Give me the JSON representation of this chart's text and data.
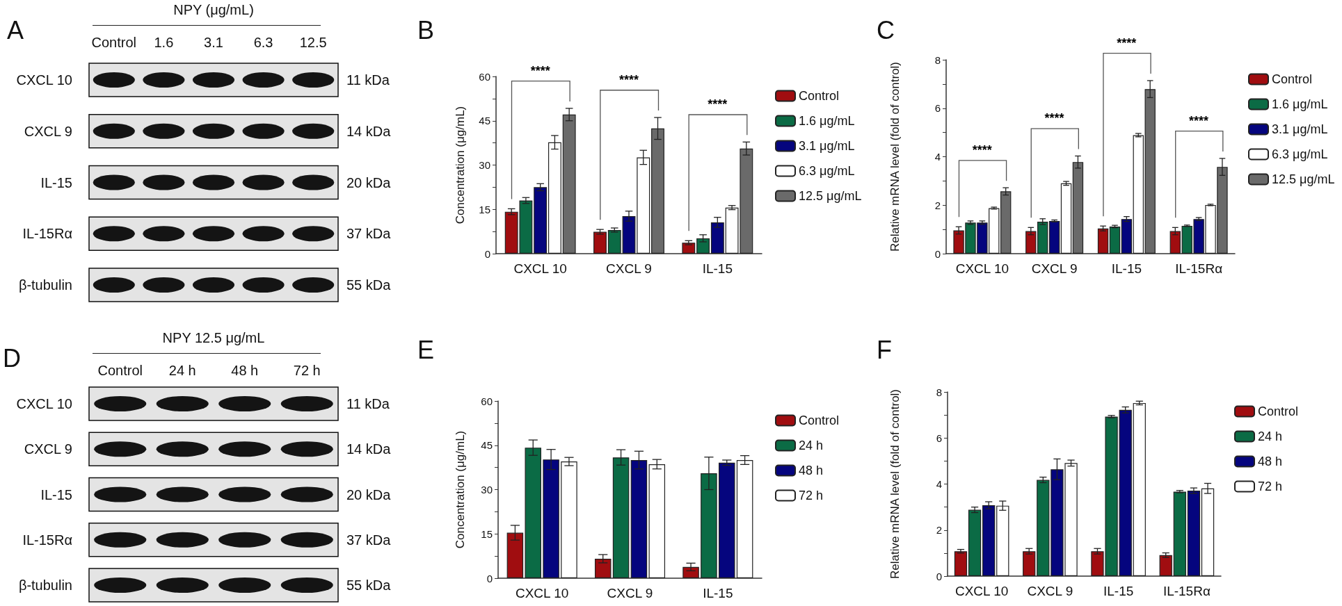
{
  "chart_data": [
    {
      "type": "other",
      "title": "NPY (μg/mL)",
      "categories": [
        "Control",
        "1.6",
        "3.1",
        "6.3",
        "12.5"
      ],
      "y_categories": [
        "CXCL 10",
        "CXCL 9",
        "IL-15",
        "IL-15Rα",
        "β-tubulin"
      ],
      "y2_categories": [
        "11 kDa",
        "14 kDa",
        "20 kDa",
        "37 kDa",
        "55 kDa"
      ],
      "annotations": [
        "A"
      ]
    },
    {
      "type": "bar",
      "categories": [
        "CXCL 10",
        "CXCL 9",
        "IL-15"
      ],
      "ylabel": "Concentration (μg/mL)",
      "ylim": [
        0,
        60
      ],
      "yticks": [
        0,
        {
          "value": 7.5,
          "label": null
        },
        15,
        {
          "value": 22.5,
          "label": null
        },
        30,
        {
          "value": 37.5,
          "label": null
        },
        45,
        {
          "value": 52.5,
          "label": null
        },
        60
      ],
      "legend": "right",
      "annotations": [
        "B",
        "****",
        "****",
        "****"
      ],
      "series": [
        {
          "name": "Control",
          "color": "#a00d10",
          "values": [
            14.2,
            7.4,
            3.7
          ],
          "errors": [
            1.0,
            0.8,
            0.7
          ]
        },
        {
          "name": "1.6 μg/mL",
          "color": "#0b6b45",
          "values": [
            18.0,
            8.0,
            5.2
          ],
          "errors": [
            1.0,
            0.7,
            1.2
          ]
        },
        {
          "name": "3.1 μg/mL",
          "color": "#05057e",
          "values": [
            22.5,
            12.7,
            10.6
          ],
          "errors": [
            1.2,
            1.7,
            1.7
          ]
        },
        {
          "name": "6.3 μg/mL",
          "color": "#ffffff",
          "values": [
            37.7,
            32.6,
            15.6
          ],
          "errors": [
            2.3,
            2.4,
            0.7
          ]
        },
        {
          "name": "12.5 μg/mL",
          "color": "#6a6a6a",
          "values": [
            47.1,
            42.4,
            35.6
          ],
          "errors": [
            2.1,
            3.7,
            2.2
          ]
        }
      ]
    },
    {
      "type": "bar",
      "categories": [
        "CXCL 10",
        "CXCL 9",
        "IL-15",
        "IL-15Rα"
      ],
      "ylabel": "Relative mRNA level (fold of control)",
      "ylim": [
        0,
        8
      ],
      "yticks": [
        0,
        {
          "value": 1,
          "label": null
        },
        2,
        {
          "value": 3,
          "label": null
        },
        4,
        {
          "value": 5,
          "label": null
        },
        6,
        {
          "value": 7,
          "label": null
        },
        8
      ],
      "legend": "right",
      "annotations": [
        "C",
        "****",
        "****",
        "****",
        "****"
      ],
      "series": [
        {
          "name": "Control",
          "color": "#a00d10",
          "values": [
            0.96,
            0.93,
            1.04,
            0.93
          ],
          "errors": [
            0.15,
            0.15,
            0.1,
            0.15
          ]
        },
        {
          "name": "1.6 μg/mL",
          "color": "#0b6b45",
          "values": [
            1.28,
            1.32,
            1.12,
            1.15
          ],
          "errors": [
            0.07,
            0.12,
            0.05,
            0.03
          ]
        },
        {
          "name": "3.1 μg/mL",
          "color": "#05057e",
          "values": [
            1.28,
            1.35,
            1.43,
            1.43
          ],
          "errors": [
            0.07,
            0.04,
            0.1,
            0.06
          ]
        },
        {
          "name": "6.3 μg/mL",
          "color": "#ffffff",
          "values": [
            1.88,
            2.9,
            4.89,
            2.01
          ],
          "errors": [
            0.04,
            0.08,
            0.07,
            0.03
          ]
        },
        {
          "name": "12.5 μg/mL",
          "color": "#6a6a6a",
          "values": [
            2.57,
            3.78,
            6.79,
            3.58
          ],
          "errors": [
            0.15,
            0.25,
            0.35,
            0.35
          ]
        }
      ]
    },
    {
      "type": "other",
      "title": "NPY  12.5 μg/mL",
      "categories": [
        "Control",
        "24 h",
        "48 h",
        "72 h"
      ],
      "y_categories": [
        "CXCL 10",
        "CXCL 9",
        "IL-15",
        "IL-15Rα",
        "β-tubulin"
      ],
      "y2_categories": [
        "11 kDa",
        "14 kDa",
        "20 kDa",
        "37 kDa",
        "55 kDa"
      ],
      "annotations": [
        "D"
      ]
    },
    {
      "type": "bar",
      "categories": [
        "CXCL 10",
        "CXCL 9",
        "IL-15"
      ],
      "ylabel": "Concentration (μg/mL)",
      "ylim": [
        0,
        60
      ],
      "yticks": [
        0,
        {
          "value": 7.5,
          "label": null
        },
        15,
        {
          "value": 22.5,
          "label": null
        },
        30,
        {
          "value": 37.5,
          "label": null
        },
        45,
        {
          "value": 52.5,
          "label": null
        },
        60
      ],
      "legend": "right",
      "annotations": [
        "E"
      ],
      "series": [
        {
          "name": "Control",
          "color": "#a00d10",
          "values": [
            15.4,
            6.6,
            3.8
          ],
          "errors": [
            2.5,
            1.4,
            1.3
          ]
        },
        {
          "name": "24 h",
          "color": "#0b6b45",
          "values": [
            44.2,
            40.9,
            35.5
          ],
          "errors": [
            2.6,
            2.6,
            5.5
          ]
        },
        {
          "name": "48 h",
          "color": "#05057e",
          "values": [
            40.2,
            40.0,
            39.1
          ],
          "errors": [
            3.4,
            3.0,
            0.9
          ]
        },
        {
          "name": "72 h",
          "color": "#ffffff",
          "values": [
            39.5,
            38.6,
            40.0
          ],
          "errors": [
            1.4,
            1.6,
            1.5
          ]
        }
      ]
    },
    {
      "type": "bar",
      "categories": [
        "CXCL 10",
        "CXCL 9",
        "IL-15",
        "IL-15Rα"
      ],
      "ylabel": "Relative mRNA level (fold of control)",
      "ylim": [
        0,
        8
      ],
      "yticks": [
        0,
        {
          "value": 1,
          "label": null
        },
        2,
        {
          "value": 3,
          "label": null
        },
        4,
        {
          "value": 5,
          "label": null
        },
        6,
        {
          "value": 7,
          "label": null
        },
        8
      ],
      "legend": "right",
      "annotations": [
        "F"
      ],
      "series": [
        {
          "name": "Control",
          "color": "#a00d10",
          "values": [
            1.08,
            1.08,
            1.08,
            0.91
          ],
          "errors": [
            0.08,
            0.12,
            0.12,
            0.1
          ]
        },
        {
          "name": "24 h",
          "color": "#0b6b45",
          "values": [
            2.88,
            4.18,
            6.93,
            3.67
          ],
          "errors": [
            0.12,
            0.12,
            0.05,
            0.05
          ]
        },
        {
          "name": "48 h",
          "color": "#05057e",
          "values": [
            3.08,
            4.64,
            7.22,
            3.71
          ],
          "errors": [
            0.15,
            0.45,
            0.13,
            0.12
          ]
        },
        {
          "name": "72 h",
          "color": "#ffffff",
          "values": [
            3.06,
            4.91,
            7.52,
            3.81
          ],
          "errors": [
            0.2,
            0.13,
            0.08,
            0.22
          ]
        }
      ]
    }
  ]
}
